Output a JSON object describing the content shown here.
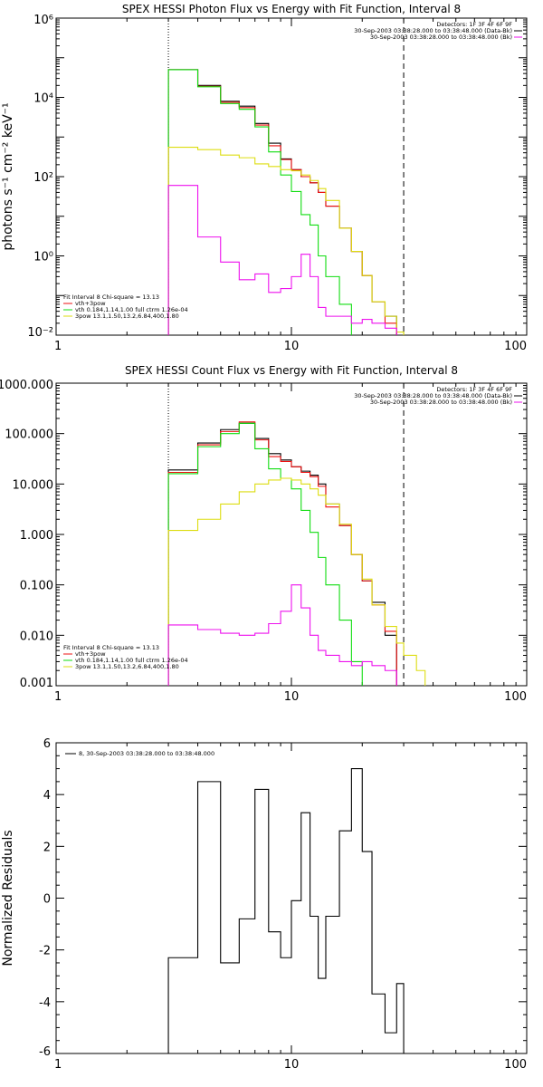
{
  "chart_data": [
    {
      "type": "line",
      "title": "SPEX HESSI Photon Flux vs Energy with Fit Function, Interval 8",
      "ylabel": "photons s⁻¹ cm⁻² keV⁻¹",
      "xscale": "log",
      "yscale": "log",
      "xlim": [
        1,
        100
      ],
      "ylim": [
        0.01,
        1000000
      ],
      "xticks": [
        1,
        10,
        100
      ],
      "xtick_labels": [
        "1",
        "10",
        "100"
      ],
      "ytick_labels": [
        "10⁻²",
        "10⁰",
        "10²",
        "10⁴",
        "10⁶"
      ],
      "header_lines": [
        "Detectors: 1F 3F 4F 6F 9F",
        "30-Sep-2003 03:38:28.000 to 03:38:48.000 (Data-Bk)",
        "30-Sep-2003 03:38:28.000 to 03:38:48.000 (Bk)"
      ],
      "header_colors": [
        "#000000",
        "#000000",
        "#ee11ee"
      ],
      "legend_title": "Fit Interval 8   Chi-square = 13.13",
      "legend": [
        {
          "label": "vth+3pow",
          "color": "#ee1111"
        },
        {
          "label": "vth 0.184,1.14,1.00  full ctrm 1.26e-04",
          "color": "#11dd11"
        },
        {
          "label": "3pow 13.1,1.50,13.2,6.84,400,1.80",
          "color": "#dddd11"
        }
      ],
      "vlines": [
        {
          "x": 3,
          "style": "dotted"
        },
        {
          "x": 30,
          "style": "dashed"
        }
      ],
      "edges": [
        3,
        4,
        5,
        6,
        7,
        8,
        9,
        10,
        11,
        12,
        13,
        14,
        16,
        18,
        20,
        22,
        25,
        28,
        30,
        34,
        37
      ],
      "series": [
        {
          "name": "Data-Bk",
          "color": "#000000",
          "values": [
            50000,
            20000,
            8000,
            6000,
            2200,
            700,
            280,
            150,
            100,
            70,
            40,
            18,
            5,
            1.3,
            0.32,
            0.07,
            0.03,
            0.008
          ]
        },
        {
          "name": "vth+3pow",
          "color": "#ee1111",
          "values": [
            50000,
            19000,
            7500,
            5500,
            2000,
            600,
            270,
            150,
            100,
            70,
            40,
            18,
            5,
            1.3,
            0.32,
            0.07,
            0.02
          ]
        },
        {
          "name": "vth",
          "color": "#11dd11",
          "values": [
            50000,
            18500,
            7000,
            5000,
            1800,
            420,
            110,
            42,
            11,
            6,
            1.0,
            0.3,
            0.06,
            0.008
          ]
        },
        {
          "name": "3pow",
          "color": "#dddd11",
          "values": [
            550,
            480,
            350,
            300,
            210,
            180,
            150,
            140,
            110,
            80,
            50,
            25,
            5,
            1.3,
            0.32,
            0.07,
            0.03,
            0.012,
            0.005
          ]
        },
        {
          "name": "Bk",
          "color": "#ee11ee",
          "values": [
            60,
            3,
            0.7,
            0.25,
            0.35,
            0.12,
            0.15,
            0.3,
            1.1,
            0.3,
            0.05,
            0.03,
            0.03,
            0.02,
            0.025,
            0.02,
            0.015
          ]
        }
      ]
    },
    {
      "type": "line",
      "title": "SPEX HESSI Count Flux vs Energy with Fit Function, Interval 8",
      "ylabel": "",
      "xscale": "log",
      "yscale": "log",
      "xlim": [
        1,
        100
      ],
      "ylim": [
        0.001,
        1000
      ],
      "xticks": [
        1,
        10,
        100
      ],
      "xtick_labels": [
        "1",
        "10",
        "100"
      ],
      "ytick_labels": [
        "0.001",
        "0.010",
        "0.100",
        "1.000",
        "10.000",
        "100.000",
        "1000.000"
      ],
      "header_lines": [
        "Detectors: 1F 3F 4F 6F 9F",
        "30-Sep-2003 03:38:28.000 to 03:38:48.000 (Data-Bk)",
        "30-Sep-2003 03:38:28.000 to 03:38:48.000 (Bk)"
      ],
      "header_colors": [
        "#000000",
        "#000000",
        "#ee11ee"
      ],
      "legend_title": "Fit Interval 8   Chi-square = 13.13",
      "legend": [
        {
          "label": "vth+3pow",
          "color": "#ee1111"
        },
        {
          "label": "vth 0.184,1.14,1.00  full ctrm 1.26e-04",
          "color": "#11dd11"
        },
        {
          "label": "3pow 13.1,1.50,13.2,6.84,400,1.80",
          "color": "#dddd11"
        }
      ],
      "vlines": [
        {
          "x": 3,
          "style": "dotted"
        },
        {
          "x": 30,
          "style": "dashed"
        }
      ],
      "edges": [
        3,
        4,
        5,
        6,
        7,
        8,
        9,
        10,
        11,
        12,
        13,
        14,
        16,
        18,
        20,
        22,
        25,
        28,
        30,
        34,
        37
      ],
      "series": [
        {
          "name": "Data-Bk",
          "color": "#000000",
          "values": [
            19,
            65,
            120,
            160,
            80,
            40,
            30,
            22,
            18,
            15,
            10,
            4,
            1.5,
            0.4,
            0.12,
            0.045,
            0.01
          ]
        },
        {
          "name": "vth+3pow",
          "color": "#ee1111",
          "values": [
            17,
            60,
            110,
            170,
            75,
            35,
            28,
            22,
            17,
            14,
            9,
            3.5,
            1.5,
            0.4,
            0.12,
            0.04,
            0.012
          ]
        },
        {
          "name": "vth",
          "color": "#11dd11",
          "values": [
            16,
            55,
            100,
            160,
            50,
            20,
            13,
            8,
            3,
            1.1,
            0.35,
            0.1,
            0.02,
            0.003
          ]
        },
        {
          "name": "3pow",
          "color": "#dddd11",
          "values": [
            1.2,
            2,
            4,
            7,
            10,
            12,
            13,
            12,
            10,
            8,
            6,
            4,
            1.6,
            0.4,
            0.13,
            0.04,
            0.015,
            0.007,
            0.004,
            0.002
          ]
        },
        {
          "name": "Bk",
          "color": "#ee11ee",
          "values": [
            0.016,
            0.013,
            0.011,
            0.01,
            0.011,
            0.017,
            0.03,
            0.1,
            0.035,
            0.01,
            0.005,
            0.004,
            0.003,
            0.0025,
            0.003,
            0.0025,
            0.002
          ]
        }
      ]
    },
    {
      "type": "line",
      "title": "",
      "ylabel": "Normalized Residuals",
      "xscale": "log",
      "yscale": "linear",
      "xlim": [
        1,
        100
      ],
      "ylim": [
        -6,
        6
      ],
      "xticks": [
        1,
        10,
        100
      ],
      "xtick_labels": [
        "1",
        "10",
        "100"
      ],
      "yticks": [
        -6,
        -4,
        -2,
        0,
        2,
        4,
        6
      ],
      "ytick_labels": [
        "-6",
        "-4",
        "-2",
        "0",
        "2",
        "4",
        "6"
      ],
      "legend_title": "",
      "legend": [
        {
          "label": "8, 30-Sep-2003 03:38:28.000 to 03:38:48.000",
          "color": "#000000"
        }
      ],
      "vlines": [],
      "edges": [
        3,
        4,
        5,
        6,
        7,
        8,
        9,
        10,
        11,
        12,
        13,
        14,
        16,
        18,
        20,
        22,
        25,
        28,
        30
      ],
      "series": [
        {
          "name": "",
          "color": "#000000",
          "values": [
            -2.3,
            4.5,
            -2.5,
            -0.8,
            4.2,
            -1.3,
            -2.3,
            -0.1,
            3.3,
            -0.7,
            -3.1,
            -0.7,
            2.6,
            5.0,
            1.8,
            -3.7,
            -5.2,
            -3.3
          ]
        }
      ]
    }
  ]
}
